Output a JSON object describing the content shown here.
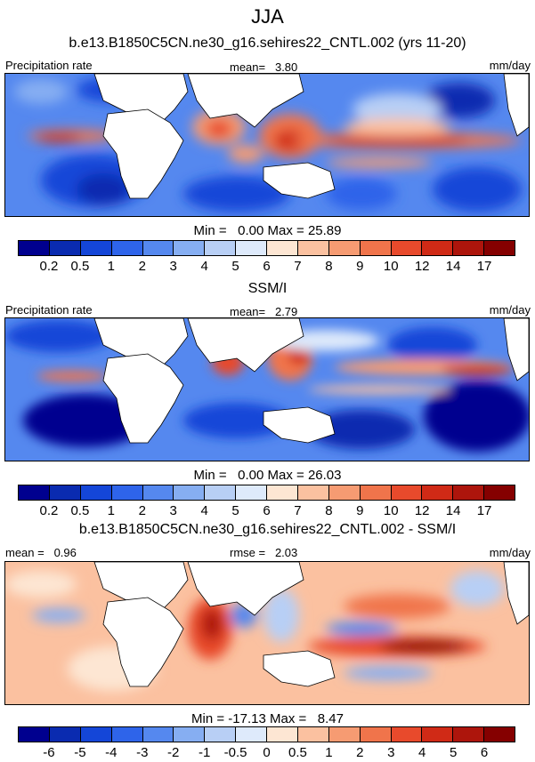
{
  "title": "JJA",
  "panel1": {
    "subtitle": "b.e13.B1850C5CN.ne30_g16.sehires22_CNTL.002 (yrs 11-20)",
    "left_label": "Precipitation rate",
    "mean_label": "mean=",
    "mean_value": "3.80",
    "units": "mm/day",
    "min_label": "Min =",
    "min_value": "0.00",
    "max_label": "Max =",
    "max_value": "25.89"
  },
  "panel2": {
    "subtitle": "SSM/I",
    "left_label": "Precipitation rate",
    "mean_label": "mean=",
    "mean_value": "2.79",
    "units": "mm/day",
    "min_label": "Min =",
    "min_value": "0.00",
    "max_label": "Max =",
    "max_value": "26.03"
  },
  "panel3": {
    "subtitle": "b.e13.B1850C5CN.ne30_g16.sehires22_CNTL.002 - SSM/I",
    "mean_label": "mean =",
    "mean_value": "0.96",
    "rmse_label": "rmse =",
    "rmse_value": "2.03",
    "units": "mm/day",
    "min_label": "Min =",
    "min_value": "-17.13",
    "max_label": "Max =",
    "max_value": "8.47"
  },
  "precip_colorbar": {
    "colors": [
      "#00008f",
      "#0a2bb0",
      "#1446d8",
      "#2e64ea",
      "#5588ef",
      "#86aef2",
      "#b8cff5",
      "#deeafb",
      "#fde6d3",
      "#fbc1a0",
      "#f69b72",
      "#f0744b",
      "#e84a2c",
      "#d02a16",
      "#ad150c",
      "#850000"
    ],
    "ticks": [
      "0.2",
      "0.5",
      "1",
      "2",
      "3",
      "4",
      "5",
      "6",
      "7",
      "8",
      "9",
      "10",
      "12",
      "14",
      "17"
    ]
  },
  "diff_colorbar": {
    "colors": [
      "#00008f",
      "#0a2bb0",
      "#1446d8",
      "#2e64ea",
      "#5588ef",
      "#86aef2",
      "#b8cff5",
      "#deeafb",
      "#fde6d3",
      "#fbc1a0",
      "#f69b72",
      "#f0744b",
      "#e84a2c",
      "#d02a16",
      "#ad150c",
      "#850000"
    ],
    "ticks": [
      "-6",
      "-5",
      "-4",
      "-3",
      "-2",
      "-1",
      "-0.5",
      "0",
      "0.5",
      "1",
      "2",
      "3",
      "4",
      "5",
      "6"
    ]
  },
  "chart_data": [
    {
      "type": "heatmap",
      "title": "b.e13.B1850C5CN.ne30_g16.sehires22_CNTL.002 (yrs 11-20)",
      "variable": "Precipitation rate",
      "units": "mm/day",
      "mean": 3.8,
      "min": 0.0,
      "max": 25.89,
      "levels": [
        0.2,
        0.5,
        1,
        2,
        3,
        4,
        5,
        6,
        7,
        8,
        9,
        10,
        12,
        14,
        17
      ]
    },
    {
      "type": "heatmap",
      "title": "SSM/I",
      "variable": "Precipitation rate",
      "units": "mm/day",
      "mean": 2.79,
      "min": 0.0,
      "max": 26.03,
      "levels": [
        0.2,
        0.5,
        1,
        2,
        3,
        4,
        5,
        6,
        7,
        8,
        9,
        10,
        12,
        14,
        17
      ]
    },
    {
      "type": "heatmap",
      "title": "b.e13.B1850C5CN.ne30_g16.sehires22_CNTL.002 - SSM/I",
      "units": "mm/day",
      "mean": 0.96,
      "rmse": 2.03,
      "min": -17.13,
      "max": 8.47,
      "levels": [
        -6,
        -5,
        -4,
        -3,
        -2,
        -1,
        -0.5,
        0,
        0.5,
        1,
        2,
        3,
        4,
        5,
        6
      ]
    }
  ]
}
